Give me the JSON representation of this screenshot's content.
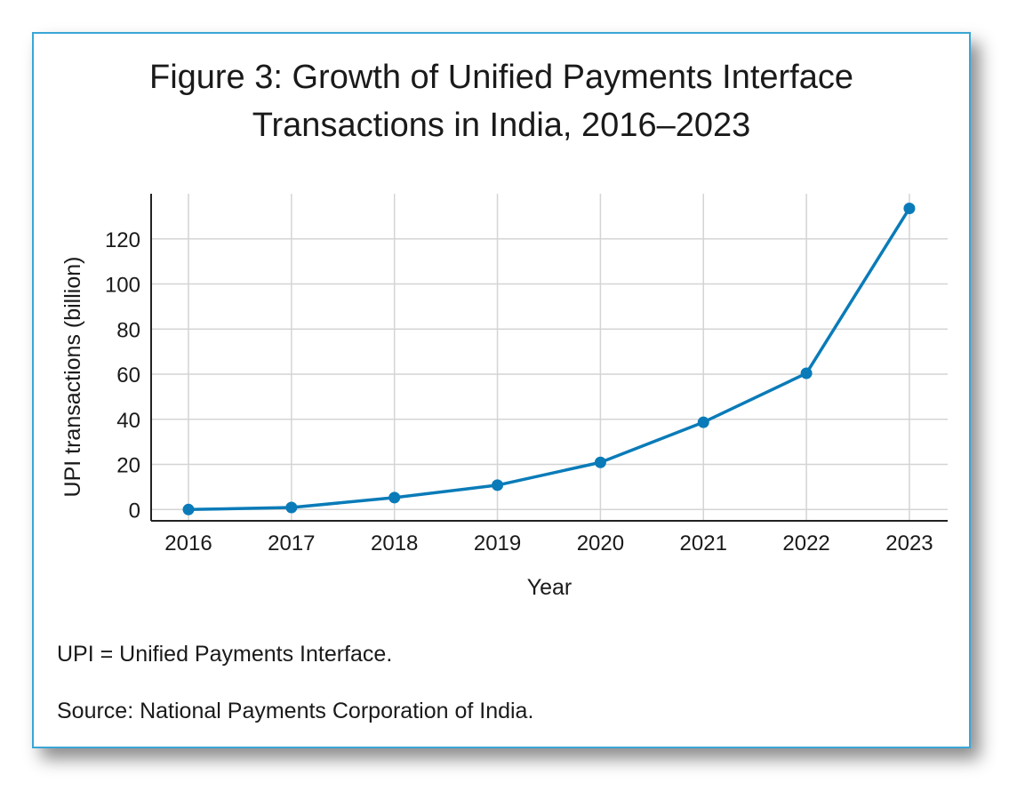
{
  "chart_data": {
    "type": "line",
    "title_line1": "Figure 3: Growth of Unified Payments Interface",
    "title_line2": "Transactions in India, 2016–2023",
    "xlabel": "Year",
    "ylabel": "UPI transactions (billion)",
    "categories": [
      "2016",
      "2017",
      "2018",
      "2019",
      "2020",
      "2021",
      "2022",
      "2023"
    ],
    "y_ticks": [
      "0",
      "20",
      "40",
      "60",
      "80",
      "100",
      "120"
    ],
    "ylim": [
      -5,
      140
    ],
    "grid": true,
    "series": [
      {
        "values": [
          0.0,
          0.9,
          5.3,
          10.8,
          20.9,
          38.7,
          60.4,
          133.5
        ],
        "color": "#0a7bb8"
      }
    ]
  },
  "notes": {
    "abbrev": "UPI = Unified Payments Interface.",
    "source": "Source: National Payments Corporation of India."
  }
}
